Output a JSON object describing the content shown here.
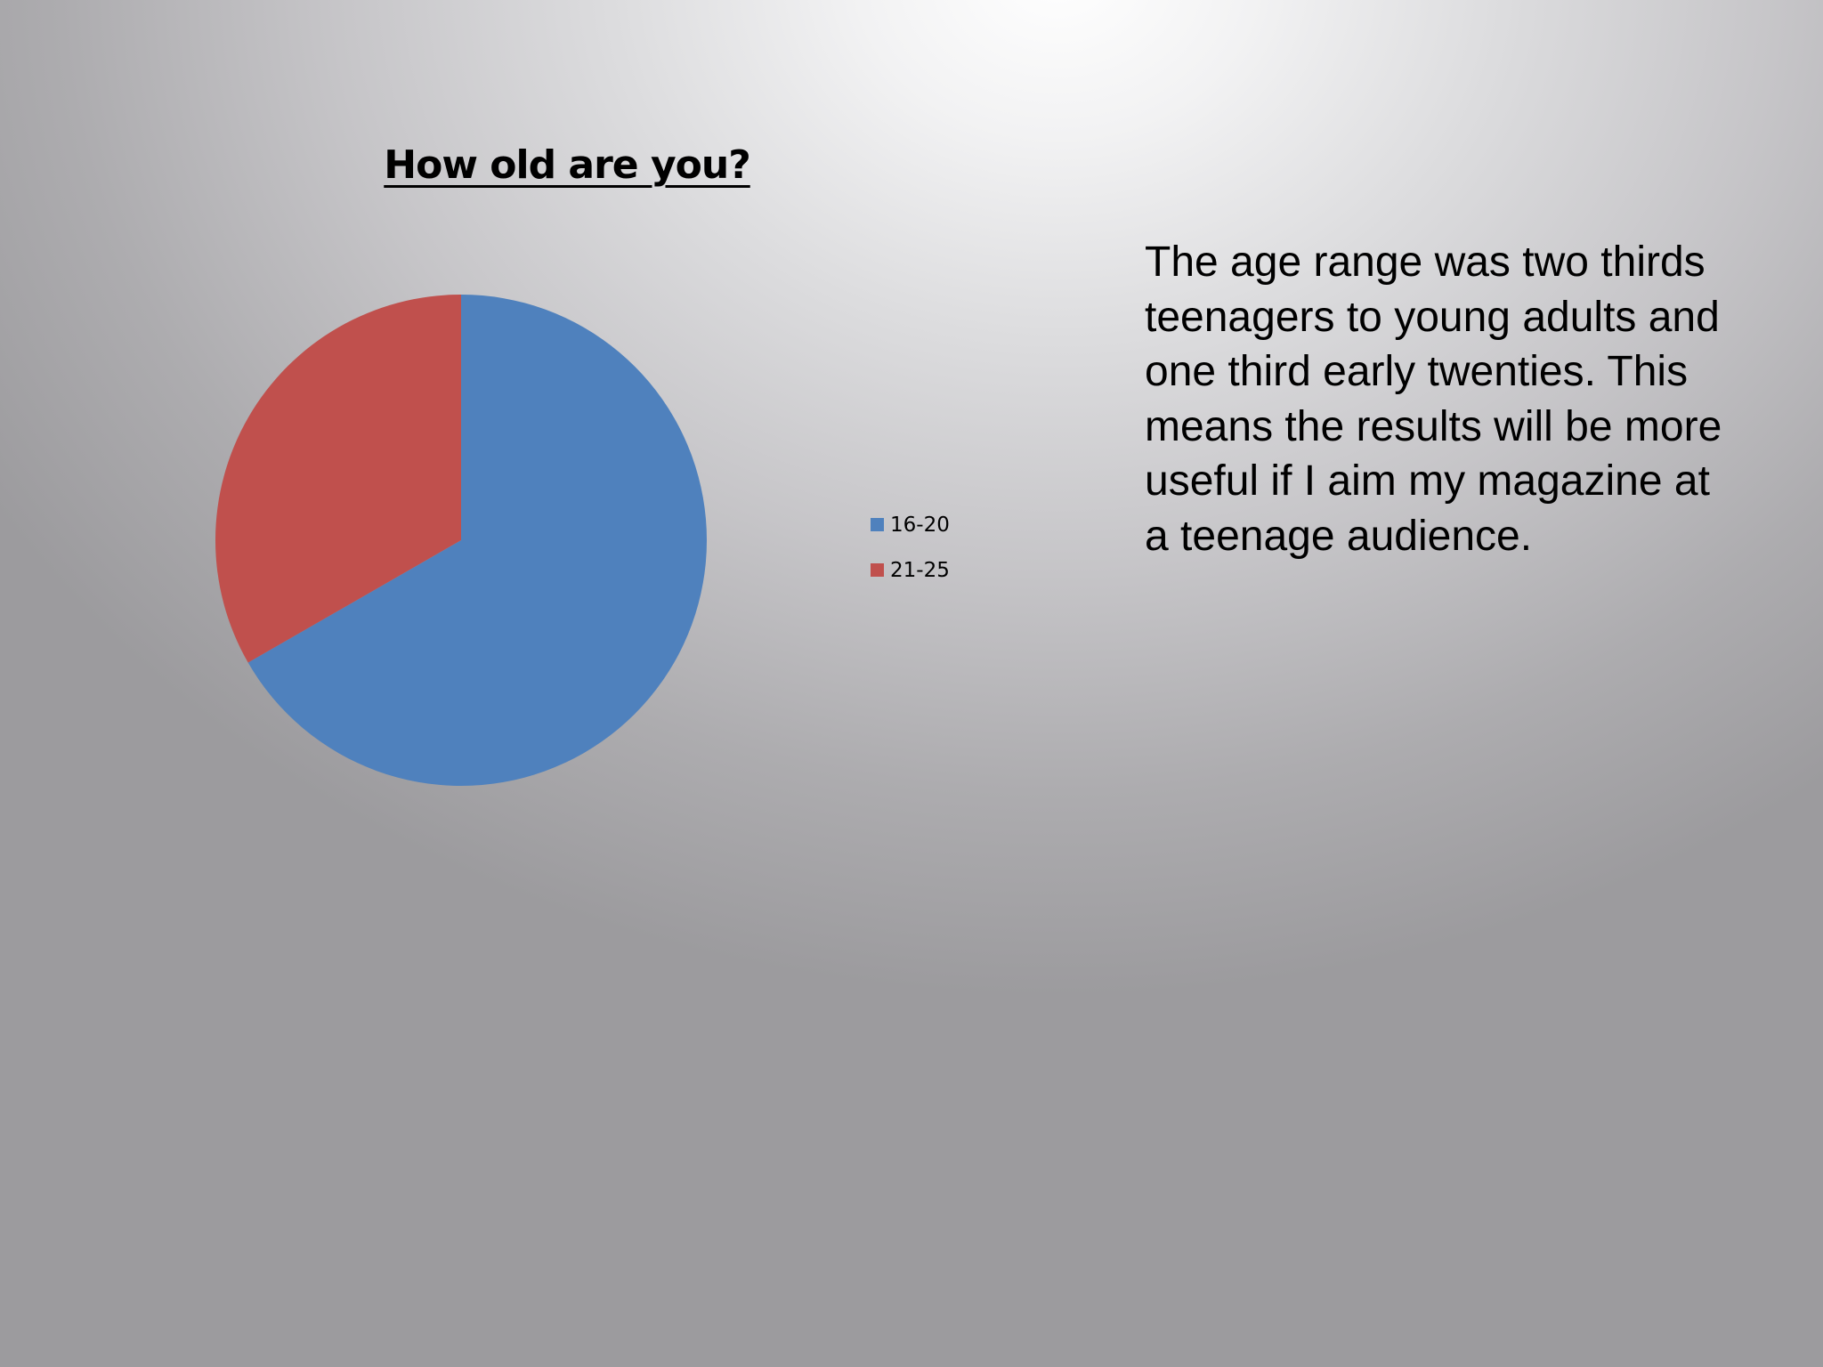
{
  "chart_data": {
    "type": "pie",
    "title": "How old are you?",
    "categories": [
      "16-20",
      "21-25"
    ],
    "values": [
      66.7,
      33.3
    ],
    "colors": [
      "#4f81bd",
      "#c0504d"
    ],
    "legend": "right"
  },
  "slide": {
    "body_text": "The age range was two thirds teenagers to young adults and one third early twenties. This means the results will be more useful if I aim my magazine at a teenage audience."
  }
}
